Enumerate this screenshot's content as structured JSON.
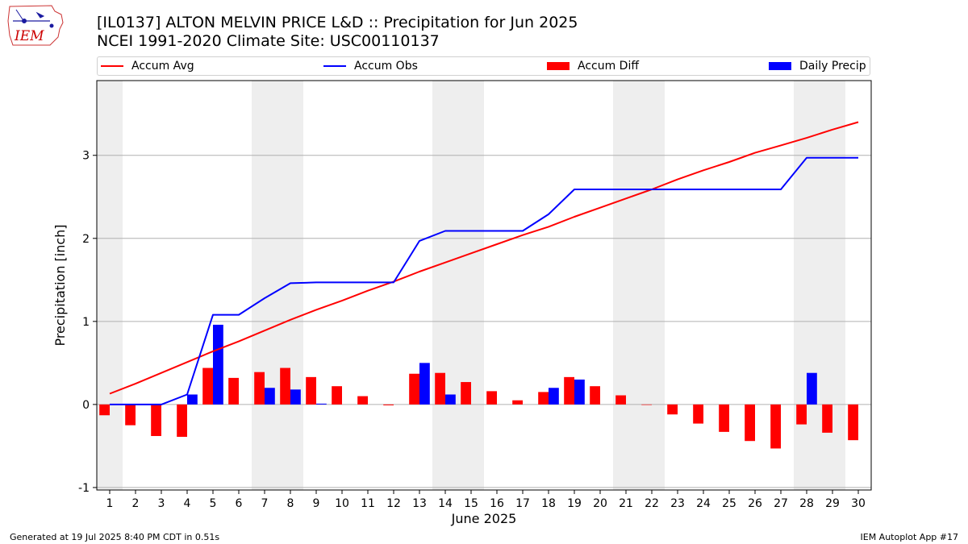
{
  "header": {
    "title_line1": "[IL0137] ALTON MELVIN PRICE L&D :: Precipitation for Jun 2025",
    "title_line2": "NCEI 1991-2020 Climate Site: USC00110137"
  },
  "logo": {
    "text": "IEM",
    "color": "#cc0000"
  },
  "legend": {
    "items": [
      {
        "label": "Accum Avg",
        "kind": "line",
        "color": "#ff0000"
      },
      {
        "label": "Accum Obs",
        "kind": "line",
        "color": "#0000ff"
      },
      {
        "label": "Accum Diff",
        "kind": "bar",
        "color": "#ff0000"
      },
      {
        "label": "Daily Precip",
        "kind": "bar",
        "color": "#0000ff"
      }
    ]
  },
  "footer": {
    "left": "Generated at 19 Jul 2025 8:40 PM CDT in 0.51s",
    "right": "IEM Autoplot App #17"
  },
  "chart_data": {
    "type": "bar",
    "xlabel": "June 2025",
    "ylabel": "Precipitation [inch]",
    "ylim": [
      -1.03,
      3.9
    ],
    "yticks": [
      -1,
      0,
      1,
      2,
      3
    ],
    "grid": "horizontal",
    "legend_position": "top",
    "weekend_shading": [
      [
        1,
        1
      ],
      [
        7,
        8
      ],
      [
        14,
        15
      ],
      [
        21,
        22
      ],
      [
        28,
        29
      ]
    ],
    "x": [
      1,
      2,
      3,
      4,
      5,
      6,
      7,
      8,
      9,
      10,
      11,
      12,
      13,
      14,
      15,
      16,
      17,
      18,
      19,
      20,
      21,
      22,
      23,
      24,
      25,
      26,
      27,
      28,
      29,
      30
    ],
    "series": [
      {
        "name": "Accum Avg",
        "kind": "line",
        "color": "#ff0000",
        "values": [
          0.13,
          0.25,
          0.38,
          0.51,
          0.64,
          0.76,
          0.89,
          1.02,
          1.14,
          1.25,
          1.37,
          1.48,
          1.6,
          1.71,
          1.82,
          1.93,
          2.04,
          2.14,
          2.26,
          2.37,
          2.48,
          2.59,
          2.71,
          2.82,
          2.92,
          3.03,
          3.12,
          3.21,
          3.31,
          3.4
        ]
      },
      {
        "name": "Accum Obs",
        "kind": "line",
        "color": "#0000ff",
        "values": [
          0.0,
          0.0,
          0.0,
          0.12,
          1.08,
          1.08,
          1.28,
          1.46,
          1.47,
          1.47,
          1.47,
          1.47,
          1.97,
          2.09,
          2.09,
          2.09,
          2.09,
          2.29,
          2.59,
          2.59,
          2.59,
          2.59,
          2.59,
          2.59,
          2.59,
          2.59,
          2.59,
          2.97,
          2.97,
          2.97
        ]
      },
      {
        "name": "Accum Diff",
        "kind": "bar",
        "color": "#ff0000",
        "values": [
          -0.13,
          -0.25,
          -0.38,
          -0.39,
          0.44,
          0.32,
          0.39,
          0.44,
          0.33,
          0.22,
          0.1,
          -0.01,
          0.37,
          0.38,
          0.27,
          0.16,
          0.05,
          0.15,
          0.33,
          0.22,
          0.11,
          0.0,
          -0.12,
          -0.23,
          -0.33,
          -0.44,
          -0.53,
          -0.24,
          -0.34,
          -0.43
        ]
      },
      {
        "name": "Daily Precip",
        "kind": "bar",
        "color": "#0000ff",
        "values": [
          0.0,
          0.0,
          0.0,
          0.12,
          0.96,
          0.0,
          0.2,
          0.18,
          0.01,
          0.0,
          0.0,
          0.0,
          0.5,
          0.12,
          0.0,
          0.0,
          0.0,
          0.2,
          0.3,
          0.0,
          0.0,
          0.0,
          0.0,
          0.0,
          0.0,
          0.0,
          0.0,
          0.38,
          0.0,
          0.0
        ]
      }
    ]
  }
}
